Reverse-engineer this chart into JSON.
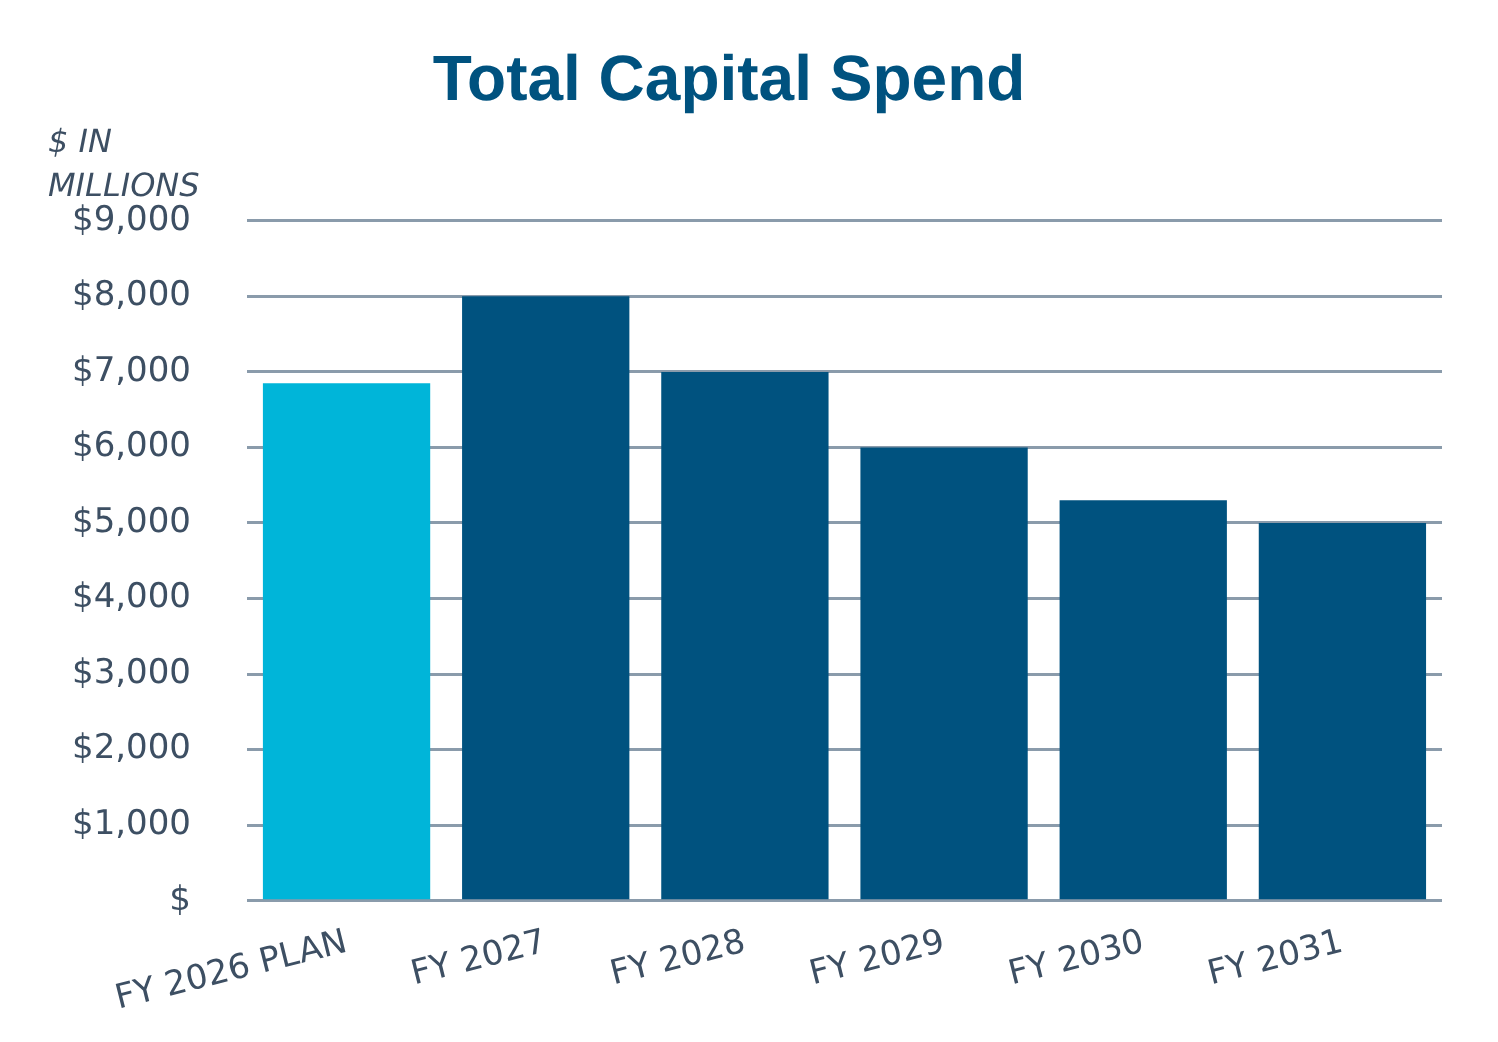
{
  "chart_data": {
    "type": "bar",
    "title": "Total Capital Spend",
    "ylabel": "$ IN MILLIONS",
    "categories": [
      "FY 2026 PLAN",
      "FY 2027",
      "FY 2028",
      "FY 2029",
      "FY 2030",
      "FY 2031"
    ],
    "values": [
      6850,
      8000,
      7000,
      6000,
      5300,
      5000
    ],
    "colors": [
      "#00b5d9",
      "#00527f",
      "#00527f",
      "#00527f",
      "#00527f",
      "#00527f"
    ],
    "ylim": [
      0,
      9000
    ],
    "yticks": [
      {
        "value": 0,
        "label": "$"
      },
      {
        "value": 1000,
        "label": "$1,000"
      },
      {
        "value": 2000,
        "label": "$2,000"
      },
      {
        "value": 3000,
        "label": "$3,000"
      },
      {
        "value": 4000,
        "label": "$4,000"
      },
      {
        "value": 5000,
        "label": "$5,000"
      },
      {
        "value": 6000,
        "label": "$6,000"
      },
      {
        "value": 7000,
        "label": "$7,000"
      },
      {
        "value": 8000,
        "label": "$8,000"
      },
      {
        "value": 9000,
        "label": "$9,000"
      }
    ],
    "grid": "y"
  }
}
